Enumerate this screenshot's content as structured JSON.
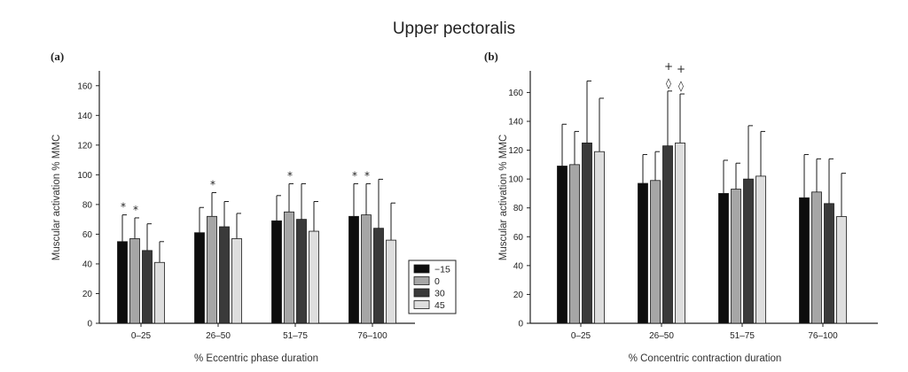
{
  "figure_title": "Upper pectoralis",
  "colors": {
    "series": [
      "#0d0d0d",
      "#a6a6a6",
      "#3a3a3a",
      "#dedede"
    ],
    "bar_outline": "#1a1a1a",
    "axis": "#222222"
  },
  "chart_data": [
    {
      "panel_label": "(a)",
      "type": "bar",
      "xlabel": "% Eccentric phase duration",
      "ylabel": "Muscular activation % MMC",
      "ylim": [
        0,
        170
      ],
      "yticks": [
        0,
        20,
        40,
        60,
        80,
        100,
        120,
        140,
        160
      ],
      "categories": [
        "0–25",
        "26–50",
        "51–75",
        "76–100"
      ],
      "series": [
        {
          "name": "−15",
          "values": [
            55,
            61,
            69,
            72
          ],
          "errors": [
            18,
            17,
            17,
            22
          ]
        },
        {
          "name": "0",
          "values": [
            57,
            72,
            75,
            73
          ],
          "errors": [
            14,
            16,
            19,
            21
          ]
        },
        {
          "name": "30",
          "values": [
            49,
            65,
            70,
            64
          ],
          "errors": [
            18,
            17,
            24,
            33
          ]
        },
        {
          "name": "45",
          "values": [
            41,
            57,
            62,
            56
          ],
          "errors": [
            14,
            17,
            20,
            25
          ]
        }
      ],
      "legend": {
        "position": "bottom-right",
        "entries": [
          "−15",
          "0",
          "30",
          "45"
        ]
      },
      "annotations": [
        {
          "category": 0,
          "series": 0,
          "text": "*"
        },
        {
          "category": 0,
          "series": 1,
          "text": "*"
        },
        {
          "category": 1,
          "series": 1,
          "text": "*"
        },
        {
          "category": 2,
          "series": 1,
          "text": "*"
        },
        {
          "category": 3,
          "series": 0,
          "text": "*"
        },
        {
          "category": 3,
          "series": 1,
          "text": "*"
        }
      ]
    },
    {
      "panel_label": "(b)",
      "type": "bar",
      "xlabel": "% Concentric contraction duration",
      "ylabel": "Muscular activation % MMC",
      "ylim": [
        0,
        175
      ],
      "yticks": [
        0,
        20,
        40,
        60,
        80,
        100,
        120,
        140,
        160
      ],
      "categories": [
        "0–25",
        "26–50",
        "51–75",
        "76–100"
      ],
      "series": [
        {
          "name": "−15",
          "values": [
            109,
            97,
            90,
            87
          ],
          "errors": [
            29,
            20,
            23,
            30
          ]
        },
        {
          "name": "0",
          "values": [
            110,
            99,
            93,
            91
          ],
          "errors": [
            23,
            20,
            18,
            23
          ]
        },
        {
          "name": "30",
          "values": [
            125,
            123,
            100,
            83
          ],
          "errors": [
            43,
            38,
            37,
            31
          ]
        },
        {
          "name": "45",
          "values": [
            119,
            125,
            102,
            74
          ],
          "errors": [
            37,
            34,
            31,
            30
          ]
        }
      ],
      "annotations": [
        {
          "category": 1,
          "series": 2,
          "text": "◊",
          "level": 0
        },
        {
          "category": 1,
          "series": 2,
          "text": "+",
          "level": 1
        },
        {
          "category": 1,
          "series": 3,
          "text": "◊",
          "level": 0
        },
        {
          "category": 1,
          "series": 3,
          "text": "+",
          "level": 1
        }
      ]
    }
  ]
}
